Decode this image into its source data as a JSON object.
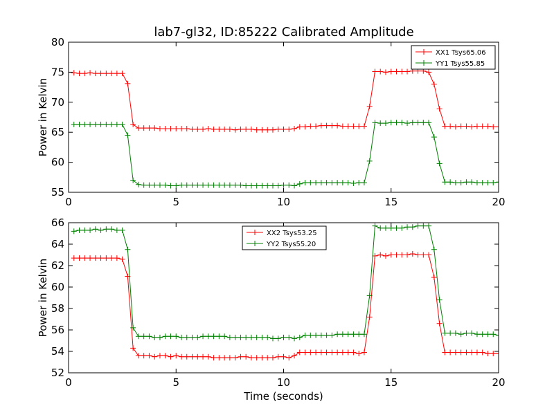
{
  "figure": {
    "title": "lab7-gl32, ID:85222 Calibrated Amplitude"
  },
  "chart_data": [
    {
      "type": "line",
      "title": "lab7-gl32, ID:85222 Calibrated Amplitude",
      "xlabel": "",
      "ylabel": "Power in Kelvin",
      "xlim": [
        0,
        20
      ],
      "ylim": [
        55,
        80
      ],
      "xticks": [
        "0",
        "5",
        "10",
        "15",
        "20"
      ],
      "yticks": [
        "55",
        "60",
        "65",
        "70",
        "75",
        "80"
      ],
      "grid": false,
      "legend_position": "top-right",
      "x": [
        0.25,
        0.5,
        0.75,
        1.0,
        1.25,
        1.5,
        1.75,
        2.0,
        2.25,
        2.5,
        2.75,
        3.0,
        3.25,
        3.5,
        3.75,
        4.0,
        4.25,
        4.5,
        4.75,
        5.0,
        5.25,
        5.5,
        5.75,
        6.0,
        6.25,
        6.5,
        6.75,
        7.0,
        7.25,
        7.5,
        7.75,
        8.0,
        8.25,
        8.5,
        8.75,
        9.0,
        9.25,
        9.5,
        9.75,
        10.0,
        10.25,
        10.5,
        10.75,
        11.0,
        11.25,
        11.5,
        11.75,
        12.0,
        12.25,
        12.5,
        12.75,
        13.0,
        13.25,
        13.5,
        13.75,
        14.0,
        14.25,
        14.5,
        14.75,
        15.0,
        15.25,
        15.5,
        15.75,
        16.0,
        16.25,
        16.5,
        16.75,
        17.0,
        17.25,
        17.5,
        17.75,
        18.0,
        18.25,
        18.5,
        18.75,
        19.0,
        19.25,
        19.5,
        19.75,
        20.0
      ],
      "series": [
        {
          "name": "XX1 Tsys65.06",
          "color": "#ff0000",
          "values": [
            74.9,
            74.8,
            74.8,
            74.9,
            74.8,
            74.8,
            74.8,
            74.8,
            74.8,
            74.8,
            73.1,
            66.3,
            65.7,
            65.7,
            65.7,
            65.7,
            65.6,
            65.6,
            65.6,
            65.6,
            65.6,
            65.6,
            65.5,
            65.5,
            65.5,
            65.6,
            65.5,
            65.5,
            65.5,
            65.5,
            65.4,
            65.5,
            65.5,
            65.5,
            65.4,
            65.4,
            65.4,
            65.4,
            65.5,
            65.5,
            65.5,
            65.6,
            65.9,
            65.9,
            66.0,
            66.0,
            66.1,
            66.1,
            66.1,
            66.1,
            66.0,
            66.0,
            66.0,
            66.0,
            66.0,
            69.3,
            75.1,
            75.1,
            75.0,
            75.1,
            75.1,
            75.1,
            75.1,
            75.2,
            75.2,
            75.2,
            75.0,
            73.0,
            68.9,
            66.0,
            66.0,
            65.9,
            66.0,
            66.0,
            65.9,
            66.0,
            66.0,
            66.0,
            65.9,
            65.9
          ]
        },
        {
          "name": "YY1 Tsys55.85",
          "color": "#008000",
          "values": [
            66.3,
            66.3,
            66.3,
            66.3,
            66.3,
            66.3,
            66.3,
            66.3,
            66.3,
            66.3,
            64.5,
            57.0,
            56.3,
            56.2,
            56.2,
            56.2,
            56.2,
            56.2,
            56.1,
            56.1,
            56.2,
            56.2,
            56.2,
            56.2,
            56.2,
            56.2,
            56.2,
            56.2,
            56.2,
            56.2,
            56.2,
            56.2,
            56.1,
            56.1,
            56.1,
            56.1,
            56.1,
            56.1,
            56.1,
            56.2,
            56.2,
            56.1,
            56.4,
            56.6,
            56.6,
            56.6,
            56.6,
            56.6,
            56.6,
            56.6,
            56.6,
            56.6,
            56.5,
            56.6,
            56.6,
            60.2,
            66.6,
            66.5,
            66.5,
            66.6,
            66.6,
            66.6,
            66.5,
            66.6,
            66.6,
            66.6,
            66.6,
            64.2,
            59.8,
            56.7,
            56.7,
            56.6,
            56.6,
            56.7,
            56.7,
            56.6,
            56.6,
            56.6,
            56.6,
            56.7
          ]
        }
      ]
    },
    {
      "type": "line",
      "title": "",
      "xlabel": "Time (seconds)",
      "ylabel": "Power in Kelvin",
      "xlim": [
        0,
        20
      ],
      "ylim": [
        52,
        66
      ],
      "xticks": [
        "0",
        "5",
        "10",
        "15",
        "20"
      ],
      "yticks": [
        "52",
        "54",
        "56",
        "58",
        "60",
        "62",
        "64",
        "66"
      ],
      "grid": false,
      "legend_position": "top-center",
      "x": [
        0.25,
        0.5,
        0.75,
        1.0,
        1.25,
        1.5,
        1.75,
        2.0,
        2.25,
        2.5,
        2.75,
        3.0,
        3.25,
        3.5,
        3.75,
        4.0,
        4.25,
        4.5,
        4.75,
        5.0,
        5.25,
        5.5,
        5.75,
        6.0,
        6.25,
        6.5,
        6.75,
        7.0,
        7.25,
        7.5,
        7.75,
        8.0,
        8.25,
        8.5,
        8.75,
        9.0,
        9.25,
        9.5,
        9.75,
        10.0,
        10.25,
        10.5,
        10.75,
        11.0,
        11.25,
        11.5,
        11.75,
        12.0,
        12.25,
        12.5,
        12.75,
        13.0,
        13.25,
        13.5,
        13.75,
        14.0,
        14.25,
        14.5,
        14.75,
        15.0,
        15.25,
        15.5,
        15.75,
        16.0,
        16.25,
        16.5,
        16.75,
        17.0,
        17.25,
        17.5,
        17.75,
        18.0,
        18.25,
        18.5,
        18.75,
        19.0,
        19.25,
        19.5,
        19.75,
        20.0
      ],
      "series": [
        {
          "name": "XX2 Tsys53.25",
          "color": "#ff0000",
          "values": [
            62.7,
            62.7,
            62.7,
            62.7,
            62.7,
            62.7,
            62.7,
            62.7,
            62.7,
            62.6,
            61.0,
            54.3,
            53.6,
            53.6,
            53.6,
            53.5,
            53.6,
            53.6,
            53.5,
            53.6,
            53.5,
            53.5,
            53.5,
            53.5,
            53.5,
            53.5,
            53.4,
            53.4,
            53.4,
            53.4,
            53.4,
            53.5,
            53.5,
            53.4,
            53.4,
            53.4,
            53.4,
            53.4,
            53.5,
            53.5,
            53.4,
            53.6,
            53.9,
            53.9,
            53.9,
            53.9,
            53.9,
            53.9,
            53.9,
            53.9,
            53.9,
            53.9,
            53.9,
            53.8,
            53.9,
            57.2,
            62.9,
            63.0,
            62.9,
            63.0,
            63.0,
            63.0,
            63.0,
            63.1,
            63.0,
            63.0,
            63.0,
            60.9,
            56.6,
            53.9,
            53.9,
            53.9,
            53.9,
            53.9,
            53.9,
            53.9,
            53.9,
            53.8,
            53.8,
            53.8
          ]
        },
        {
          "name": "YY2 Tsys55.20",
          "color": "#008000",
          "values": [
            65.2,
            65.3,
            65.3,
            65.3,
            65.4,
            65.3,
            65.4,
            65.4,
            65.3,
            65.3,
            63.5,
            56.2,
            55.4,
            55.4,
            55.4,
            55.3,
            55.3,
            55.4,
            55.4,
            55.4,
            55.3,
            55.3,
            55.3,
            55.3,
            55.4,
            55.4,
            55.4,
            55.4,
            55.4,
            55.3,
            55.3,
            55.3,
            55.3,
            55.3,
            55.3,
            55.3,
            55.3,
            55.2,
            55.2,
            55.3,
            55.3,
            55.2,
            55.3,
            55.5,
            55.5,
            55.5,
            55.5,
            55.5,
            55.5,
            55.6,
            55.6,
            55.6,
            55.6,
            55.6,
            55.6,
            59.2,
            65.7,
            65.5,
            65.5,
            65.5,
            65.5,
            65.5,
            65.6,
            65.6,
            65.7,
            65.7,
            65.7,
            63.5,
            58.8,
            55.7,
            55.7,
            55.7,
            55.6,
            55.7,
            55.7,
            55.6,
            55.6,
            55.6,
            55.6,
            55.5
          ]
        }
      ]
    }
  ]
}
